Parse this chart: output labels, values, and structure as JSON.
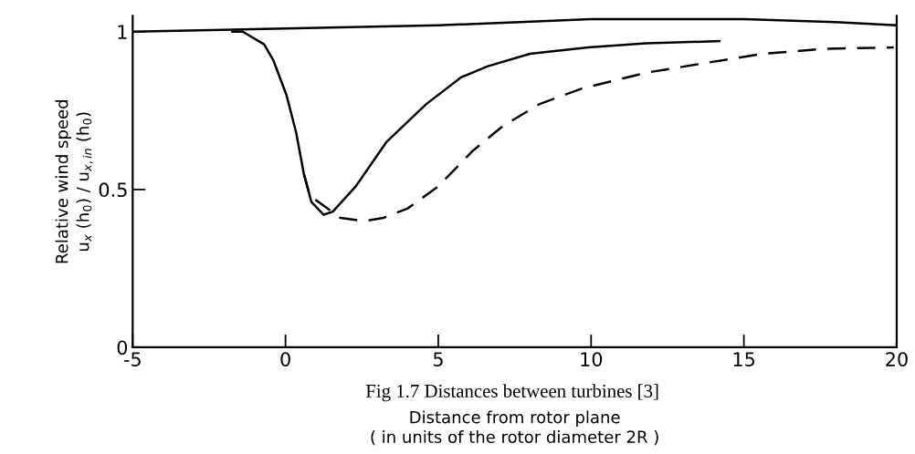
{
  "chart_data": {
    "type": "line",
    "xlabel": "Distance from rotor plane\n( in units of the rotor diameter 2R )",
    "ylabel": "Relative wind speed\nu$_{x}$ (h$_{0}$) / u$_{x,in}$ (h$_{0}$)",
    "annotations": [
      "Fig 1.7 Distances between turbines [3]"
    ],
    "xlim": [
      -5,
      20
    ],
    "xticks": [
      -5,
      0,
      5,
      10,
      15,
      20
    ],
    "ylim": [
      0,
      1.05
    ],
    "yticks": [
      0,
      0.5,
      1
    ],
    "grid": false,
    "legend": false,
    "marker": "none",
    "series": [
      {
        "color": "#000000",
        "line_style": "solid",
        "x": [
          -5,
          0,
          5,
          10,
          15,
          18,
          20
        ],
        "values": [
          1.0,
          1.01,
          1.02,
          1.04,
          1.04,
          1.03,
          1.02
        ]
      },
      {
        "color": "#000000",
        "line_style": "solid",
        "x": [
          -1.74,
          -1.4,
          -0.7,
          -0.4,
          0.03,
          0.35,
          0.6,
          0.85,
          1.25,
          1.55,
          2.3,
          3.3,
          4.6,
          5.74,
          6.6,
          8.0,
          9.9,
          11.8,
          14.2
        ],
        "values": [
          1.0,
          1.0,
          0.96,
          0.91,
          0.8,
          0.68,
          0.55,
          0.46,
          0.42,
          0.43,
          0.51,
          0.65,
          0.77,
          0.855,
          0.89,
          0.93,
          0.95,
          0.963,
          0.97
        ]
      },
      {
        "color": "#000000",
        "line_style": "dashed",
        "x": [
          0.6,
          0.8,
          1.8,
          2.6,
          3.2,
          4.0,
          5.0,
          6.1,
          7.1,
          8.3,
          9.7,
          11.8,
          13.7,
          15.6,
          17.7,
          19.9
        ],
        "values": [
          0.55,
          0.48,
          0.41,
          0.4,
          0.41,
          0.44,
          0.51,
          0.62,
          0.7,
          0.77,
          0.82,
          0.87,
          0.9,
          0.93,
          0.946,
          0.95
        ]
      }
    ]
  }
}
